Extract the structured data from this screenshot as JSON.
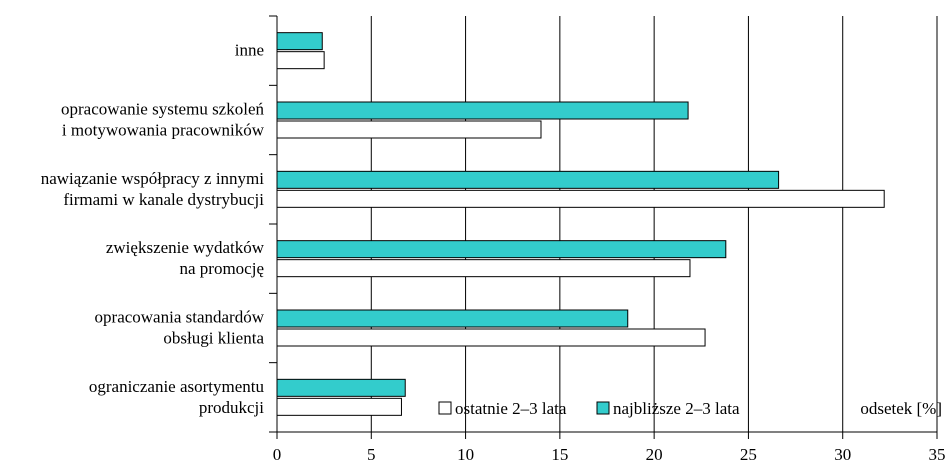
{
  "chart_data": {
    "type": "bar",
    "orientation": "horizontal",
    "categories": [
      [
        "inne"
      ],
      [
        "opracowanie systemu szkoleń",
        "i motywowania pracowników"
      ],
      [
        "nawiązanie współpracy z innymi",
        "firmami w kanale dystrybucji"
      ],
      [
        "zwiększenie wydatków",
        "na promocję"
      ],
      [
        "opracowania standardów",
        "obsługi klienta"
      ],
      [
        "ograniczanie asortymentu",
        "produkcji"
      ]
    ],
    "series": [
      {
        "name": "najbliższe 2–3 lata",
        "color": "#33cccc",
        "values": [
          2.4,
          21.8,
          26.6,
          23.8,
          18.6,
          6.8
        ]
      },
      {
        "name": "ostatnie 2–3 lata",
        "color": "#ffffff",
        "values": [
          2.5,
          14.0,
          32.2,
          21.9,
          22.7,
          6.6
        ]
      }
    ],
    "legend_order": [
      "ostatnie 2–3 lata",
      "najbliższe 2–3 lata"
    ],
    "xlabel": "odsetek [%]",
    "xlim": [
      0,
      35
    ],
    "xticks": [
      0,
      5,
      10,
      15,
      20,
      25,
      30,
      35
    ],
    "grid": true,
    "legend_position": "bottom-center"
  }
}
